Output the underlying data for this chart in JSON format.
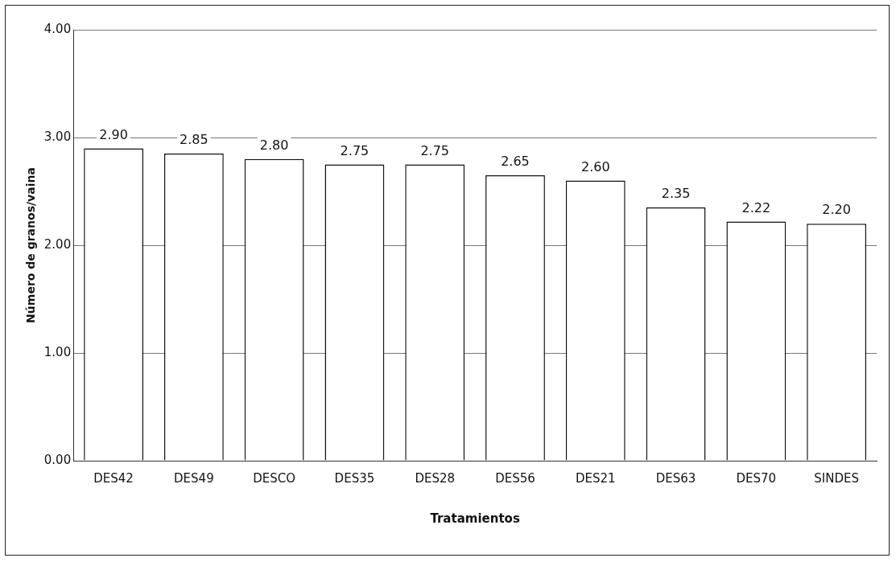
{
  "chart_data": {
    "type": "bar",
    "xlabel": "Tratamientos",
    "ylabel": "Número de granos/vaina",
    "categories": [
      "DES42",
      "DES49",
      "DESCO",
      "DES35",
      "DES28",
      "DES56",
      "DES21",
      "DES63",
      "DES70",
      "SINDES"
    ],
    "values": [
      2.9,
      2.85,
      2.8,
      2.75,
      2.75,
      2.65,
      2.6,
      2.35,
      2.22,
      2.2
    ],
    "color": "#ffffff",
    "value_labels": [
      "2.90",
      "2.85",
      "2.80",
      "2.75",
      "2.75",
      "2.65",
      "2.60",
      "2.35",
      "2.22",
      "2.20"
    ],
    "ylim": [
      0,
      4
    ],
    "yticks": [
      {
        "value": 0,
        "label": "0.00"
      },
      {
        "value": 1,
        "label": "1.00"
      },
      {
        "value": 2,
        "label": "2.00"
      },
      {
        "value": 3,
        "label": "3.00"
      },
      {
        "value": 4,
        "label": "4.00"
      }
    ],
    "grid": "y",
    "legend": false
  }
}
